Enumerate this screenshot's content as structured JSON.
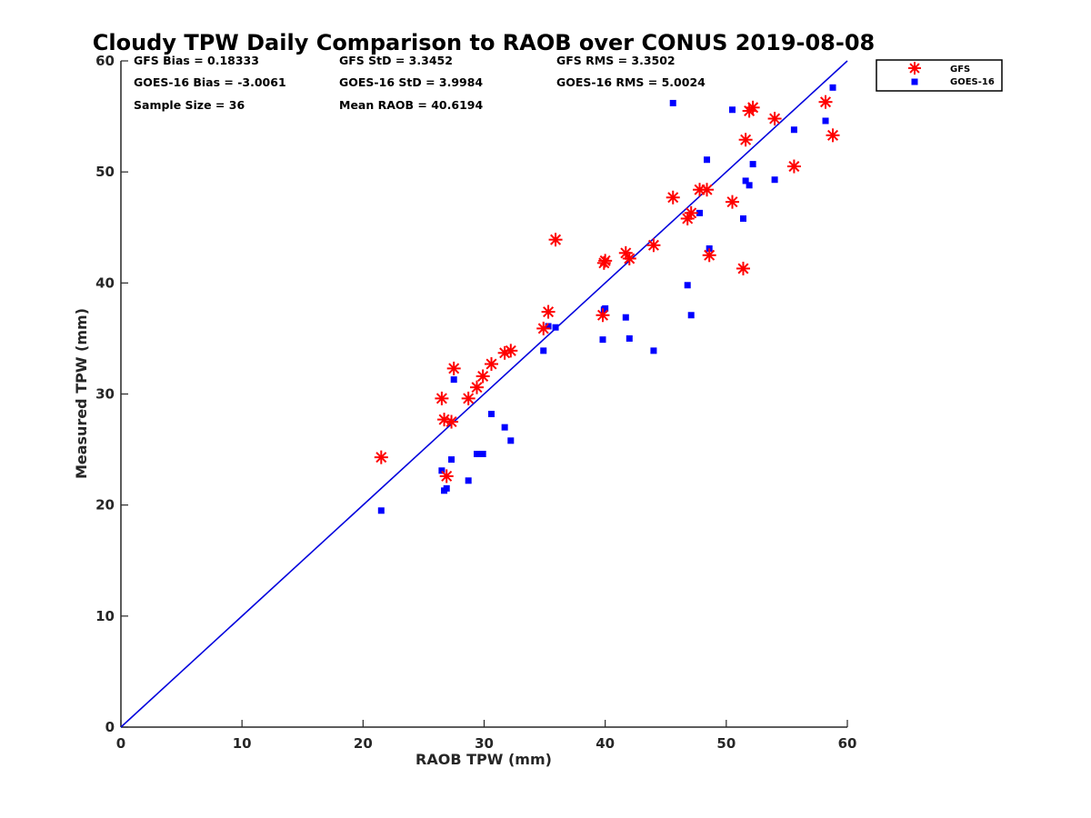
{
  "chart_data": {
    "type": "scatter",
    "title": "Cloudy TPW Daily Comparison to RAOB over CONUS 2019-08-08",
    "xlabel": "RAOB TPW (mm)",
    "ylabel": "Measured TPW (mm)",
    "xlim": [
      0,
      60
    ],
    "ylim": [
      0,
      60
    ],
    "xticks": [
      "0",
      "10",
      "20",
      "30",
      "40",
      "50",
      "60"
    ],
    "yticks": [
      "0",
      "10",
      "20",
      "30",
      "40",
      "50",
      "60"
    ],
    "xtick_values": [
      0,
      10,
      20,
      30,
      40,
      50,
      60
    ],
    "ytick_values": [
      0,
      10,
      20,
      30,
      40,
      50,
      60
    ],
    "reference_line": {
      "x": [
        0,
        60
      ],
      "y": [
        0,
        60
      ],
      "color": "#0000dd"
    },
    "stats": {
      "gfs_bias": "GFS Bias = 0.18333",
      "goes_bias": "GOES-16 Bias = -3.0061",
      "sample_size": "Sample Size = 36",
      "gfs_std": "GFS StD = 3.3452",
      "goes_std": "GOES-16 StD = 3.9984",
      "mean_raob": "Mean RAOB = 40.6194",
      "gfs_rms": "GFS RMS = 3.3502",
      "goes_rms": "GOES-16 RMS = 5.0024"
    },
    "legend": {
      "position": "top-right-outside",
      "entries": [
        {
          "label": "GFS",
          "color": "#ff0000",
          "marker": "asterisk"
        },
        {
          "label": "GOES-16",
          "color": "#0000ff",
          "marker": "square"
        }
      ]
    },
    "series": [
      {
        "name": "GFS",
        "color": "#ff0000",
        "marker": "asterisk",
        "x": [
          21.5,
          26.5,
          26.7,
          26.9,
          27.3,
          27.5,
          28.7,
          29.4,
          29.9,
          30.6,
          31.7,
          32.2,
          34.9,
          35.3,
          35.9,
          39.8,
          39.9,
          40.0,
          41.7,
          42.0,
          44.0,
          45.6,
          46.8,
          47.1,
          47.8,
          48.4,
          48.6,
          50.5,
          51.4,
          51.6,
          51.9,
          52.2,
          54.0,
          55.6,
          58.2,
          58.8
        ],
        "y": [
          24.3,
          29.6,
          27.7,
          22.6,
          27.5,
          32.3,
          29.6,
          30.6,
          31.6,
          32.7,
          33.7,
          33.9,
          35.9,
          37.4,
          43.9,
          37.1,
          41.8,
          42.0,
          42.7,
          42.2,
          43.4,
          47.7,
          45.8,
          46.3,
          48.4,
          48.4,
          42.5,
          47.3,
          41.3,
          52.9,
          55.5,
          55.8,
          54.8,
          50.5,
          56.3,
          53.3
        ]
      },
      {
        "name": "GOES-16",
        "color": "#0000ff",
        "marker": "square",
        "x": [
          21.5,
          26.5,
          26.7,
          26.9,
          27.3,
          27.5,
          28.7,
          29.4,
          29.9,
          30.6,
          31.7,
          32.2,
          34.9,
          35.3,
          35.9,
          39.8,
          39.9,
          40.0,
          41.7,
          42.0,
          44.0,
          45.6,
          46.8,
          47.1,
          47.8,
          48.4,
          48.6,
          50.5,
          51.4,
          51.6,
          51.9,
          52.2,
          54.0,
          55.6,
          58.2,
          58.8
        ],
        "y": [
          19.5,
          23.1,
          21.3,
          21.5,
          24.1,
          31.3,
          22.2,
          24.6,
          24.6,
          28.2,
          27.0,
          25.8,
          33.9,
          36.1,
          36.0,
          34.9,
          37.6,
          37.7,
          36.9,
          35.0,
          33.9,
          56.2,
          39.8,
          37.1,
          46.3,
          51.1,
          43.1,
          55.6,
          45.8,
          49.2,
          48.8,
          50.7,
          49.3,
          53.8,
          54.6,
          57.6
        ]
      }
    ]
  }
}
